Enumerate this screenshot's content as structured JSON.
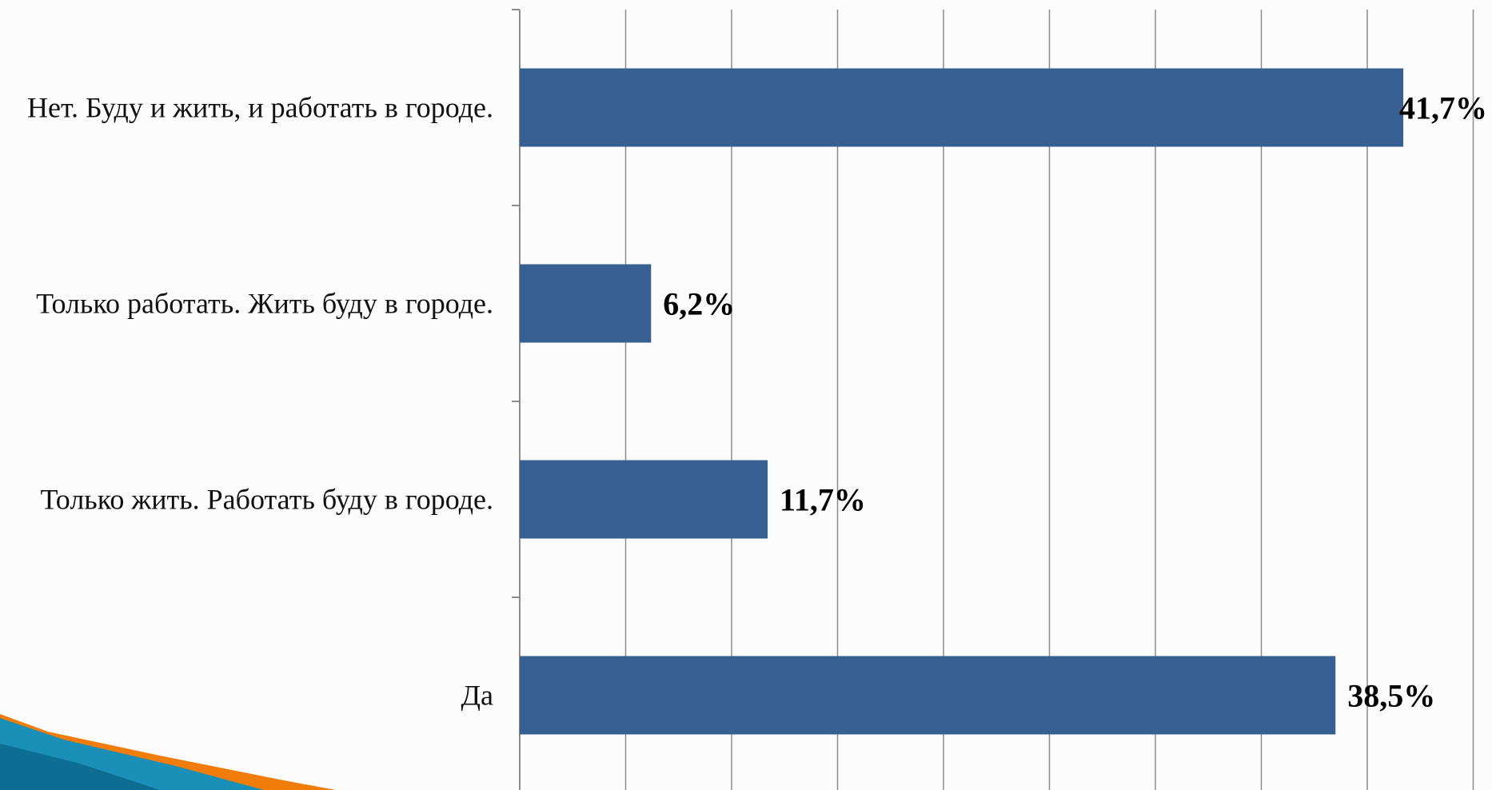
{
  "chart_data": {
    "type": "bar",
    "orientation": "horizontal",
    "categories": [
      "Нет. Буду и жить, и работать в городе.",
      "Только работать. Жить буду в городе.",
      "Только жить. Работать буду в городе.",
      "Да"
    ],
    "values": [
      41.7,
      6.2,
      11.7,
      38.5
    ],
    "value_labels": [
      "41,7%",
      "6,2%",
      "11,7%",
      "38,5%"
    ],
    "xlim": [
      0,
      45
    ],
    "x_gridline_step": 5,
    "grid": true,
    "bar_color": "#376092",
    "gridline_color": "#8c8c8c",
    "legend": "none",
    "title": ""
  },
  "decoration": {
    "corner_swoosh_colors": [
      "#1a8fb8",
      "#f07d0a"
    ]
  }
}
